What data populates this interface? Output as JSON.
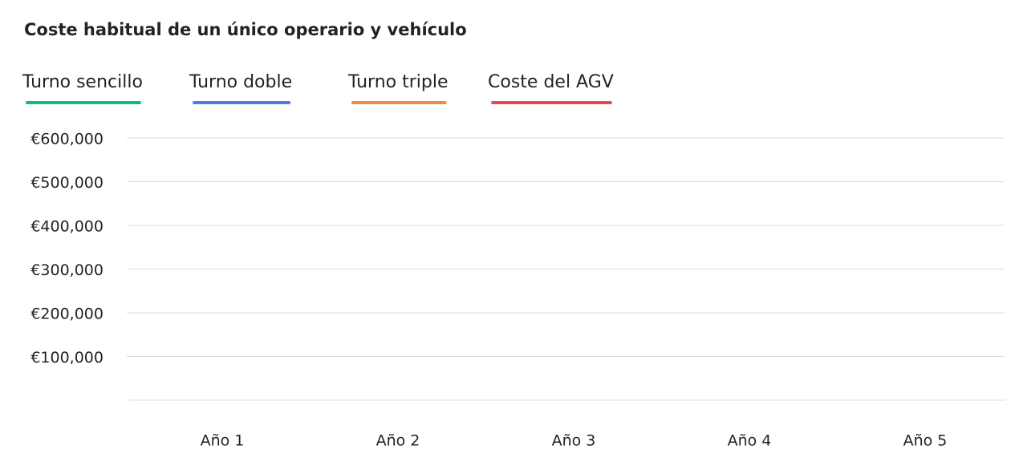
{
  "chart_data": {
    "type": "line",
    "title": "Coste habitual de un único operario y vehículo",
    "categories": [
      "Año 1",
      "Año 2",
      "Año 3",
      "Año 4",
      "Año 5"
    ],
    "series": [
      {
        "name": "Turno sencillo",
        "color": "#12b886",
        "values": [
          null,
          null,
          null,
          null,
          null
        ]
      },
      {
        "name": "Turno doble",
        "color": "#4c7fe0",
        "values": [
          null,
          null,
          null,
          null,
          null
        ]
      },
      {
        "name": "Turno triple",
        "color": "#f08a4b",
        "values": [
          null,
          null,
          null,
          null,
          null
        ]
      },
      {
        "name": "Coste del AGV",
        "color": "#e5484d",
        "values": [
          null,
          null,
          null,
          null,
          null
        ]
      }
    ],
    "ylim": [
      0,
      600000
    ],
    "yticks": [
      {
        "value": 100000,
        "label": "€100,000"
      },
      {
        "value": 200000,
        "label": "€200,000"
      },
      {
        "value": 300000,
        "label": "€300,000"
      },
      {
        "value": 400000,
        "label": "€400,000"
      },
      {
        "value": 500000,
        "label": "€500,000"
      },
      {
        "value": 600000,
        "label": "€600,000"
      }
    ],
    "grid": true
  }
}
